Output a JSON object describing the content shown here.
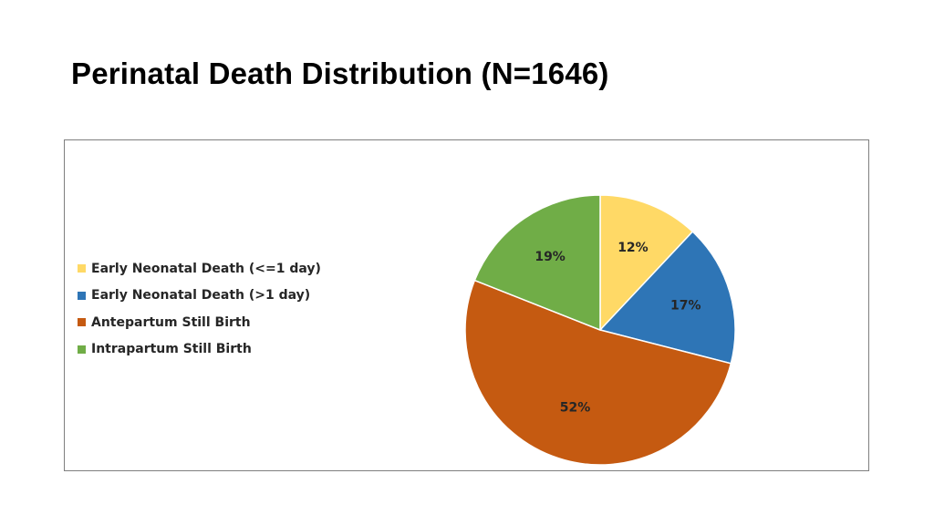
{
  "slide": {
    "title": "Perinatal Death Distribution (N=1646)"
  },
  "chart_data": {
    "type": "pie",
    "title": "",
    "legend_position": "left",
    "start_angle_deg": 0,
    "direction": "clockwise",
    "slices": [
      {
        "name": "Early Neonatal Death (<=1 day)",
        "percent": 12,
        "label": "12%",
        "color": "#FFD966"
      },
      {
        "name": "Early Neonatal Death (>1 day)",
        "percent": 17,
        "label": "17%",
        "color": "#2E75B6"
      },
      {
        "name": "Antepartum Still Birth",
        "percent": 52,
        "label": "52%",
        "color": "#C55A11"
      },
      {
        "name": "Intrapartum Still Birth",
        "percent": 19,
        "label": "19%",
        "color": "#70AD47"
      }
    ]
  }
}
